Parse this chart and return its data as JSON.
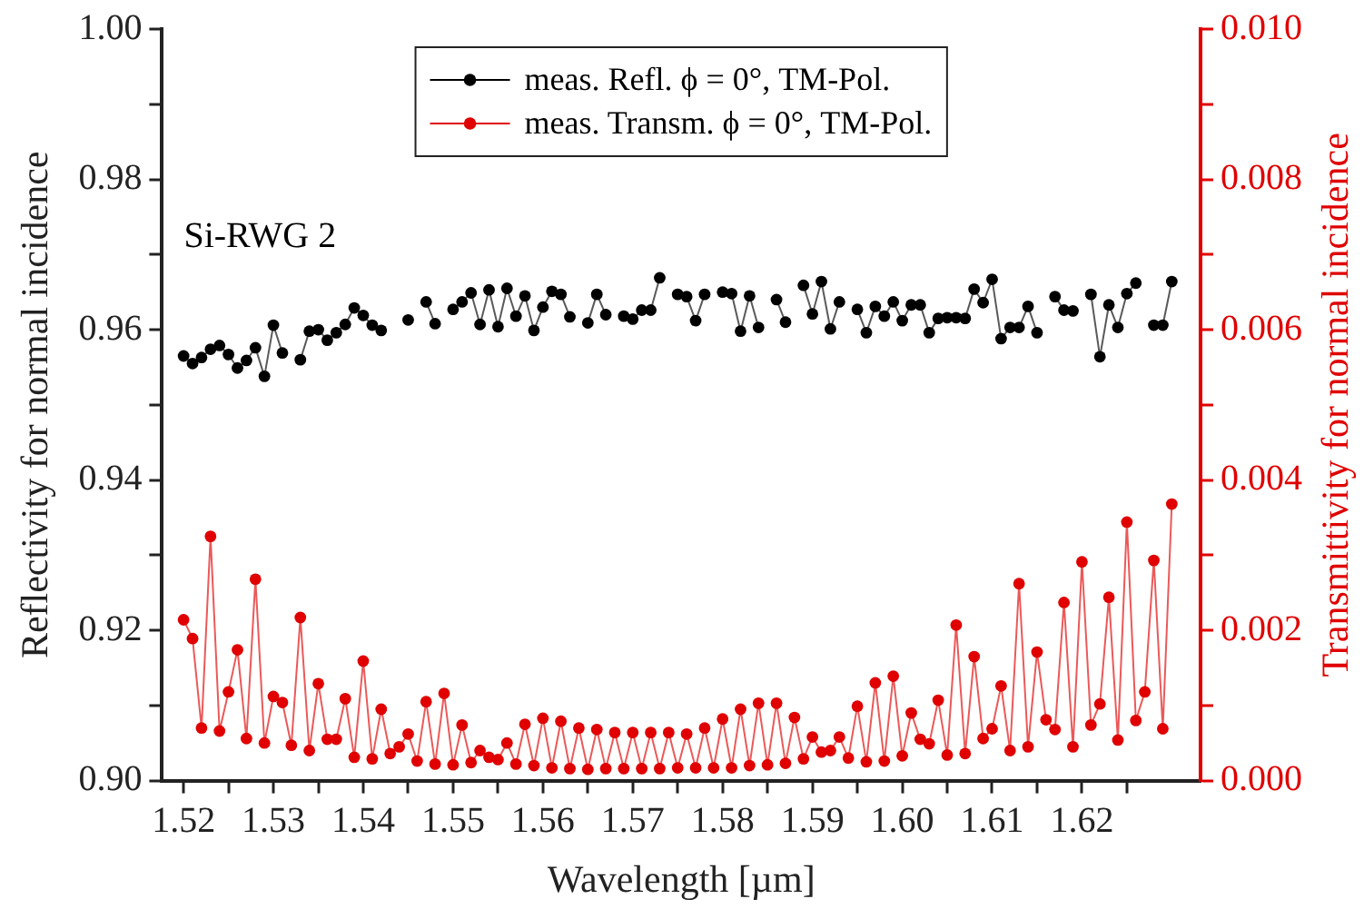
{
  "chart_data": {
    "type": "line",
    "xlabel": "Wavelength [µm]",
    "ylabel": "Reflectivity for normal incidence",
    "y2label": "Transmittivity for normal incidence",
    "annotations": [
      "Si-RWG 2"
    ],
    "x": [
      1.52,
      1.521,
      1.522,
      1.523,
      1.524,
      1.525,
      1.526,
      1.527,
      1.528,
      1.529,
      1.53,
      1.531,
      1.532,
      1.533,
      1.534,
      1.535,
      1.536,
      1.537,
      1.538,
      1.539,
      1.54,
      1.541,
      1.542,
      1.543,
      1.544,
      1.545,
      1.546,
      1.547,
      1.548,
      1.549,
      1.55,
      1.551,
      1.552,
      1.553,
      1.554,
      1.555,
      1.556,
      1.557,
      1.558,
      1.559,
      1.56,
      1.561,
      1.562,
      1.563,
      1.564,
      1.565,
      1.566,
      1.567,
      1.568,
      1.569,
      1.57,
      1.571,
      1.572,
      1.573,
      1.574,
      1.575,
      1.576,
      1.577,
      1.578,
      1.579,
      1.58,
      1.581,
      1.582,
      1.583,
      1.584,
      1.585,
      1.586,
      1.587,
      1.588,
      1.589,
      1.59,
      1.591,
      1.592,
      1.593,
      1.594,
      1.595,
      1.596,
      1.597,
      1.598,
      1.599,
      1.6,
      1.601,
      1.602,
      1.603,
      1.604,
      1.605,
      1.606,
      1.607,
      1.608,
      1.609,
      1.61,
      1.611,
      1.612,
      1.613,
      1.614,
      1.615,
      1.616,
      1.617,
      1.618,
      1.619,
      1.62,
      1.621,
      1.622,
      1.623,
      1.624,
      1.625,
      1.626,
      1.627,
      1.628,
      1.629,
      1.63
    ],
    "series": [
      {
        "name": "meas. Refl. ϕ = 0°, TM-Pol.",
        "color": "#000000",
        "values": [
          0.9565,
          0.9555,
          0.9563,
          0.9574,
          0.9579,
          0.9567,
          0.9549,
          0.9559,
          0.9576,
          0.9538,
          0.9606,
          0.9569,
          null,
          0.956,
          0.9598,
          0.96,
          0.9586,
          0.9596,
          0.9607,
          0.9629,
          0.9619,
          0.9606,
          0.9599,
          null,
          null,
          0.9613,
          null,
          0.9637,
          0.9608,
          null,
          0.9627,
          0.9637,
          0.9649,
          0.9607,
          0.9653,
          0.9604,
          0.9655,
          0.9618,
          0.9645,
          0.9599,
          0.963,
          0.9651,
          0.9647,
          0.9617,
          null,
          0.9609,
          0.9647,
          0.962,
          null,
          0.9618,
          0.9614,
          0.9626,
          0.9626,
          0.9669,
          null,
          0.9647,
          0.9644,
          0.9612,
          0.9647,
          null,
          0.965,
          0.9648,
          0.9598,
          0.9645,
          0.9603,
          null,
          0.964,
          0.961,
          null,
          0.9659,
          0.9621,
          0.9664,
          0.9601,
          0.9637,
          null,
          0.9627,
          0.9596,
          0.9631,
          0.9618,
          0.9637,
          0.9612,
          0.9633,
          0.9633,
          0.9596,
          0.9615,
          0.9616,
          0.9616,
          0.9615,
          0.9654,
          0.9636,
          0.9667,
          0.9588,
          0.9603,
          0.9603,
          0.9631,
          0.9596,
          null,
          0.9644,
          0.9626,
          0.9625,
          null,
          0.9647,
          0.9564,
          0.9633,
          0.9603,
          0.9648,
          0.9662,
          null,
          0.9606,
          0.9606,
          0.9664
        ]
      },
      {
        "name": "meas. Transm. ϕ = 0°, TM-Pol.",
        "color": "#e00000",
        "axis": "y2",
        "values": [
          0.00214,
          0.00189,
          0.0007,
          0.00325,
          0.00066,
          0.00118,
          0.00174,
          0.00056,
          0.00268,
          0.0005,
          0.00112,
          0.00104,
          0.00047,
          0.00217,
          0.0004,
          0.00129,
          0.00055,
          0.00055,
          0.00109,
          0.00031,
          0.00159,
          0.00029,
          0.00095,
          0.00036,
          0.00045,
          0.00062,
          0.00026,
          0.00105,
          0.00022,
          0.00116,
          0.00021,
          0.00074,
          0.00024,
          0.0004,
          0.00031,
          0.00028,
          0.0005,
          0.00022,
          0.00075,
          0.0002,
          0.00083,
          0.00017,
          0.00079,
          0.00016,
          0.0007,
          0.00015,
          0.00068,
          0.00016,
          0.00064,
          0.00016,
          0.00064,
          0.00016,
          0.00064,
          0.00016,
          0.00064,
          0.00017,
          0.00062,
          0.00017,
          0.0007,
          0.00017,
          0.00082,
          0.00017,
          0.00095,
          0.0002,
          0.00103,
          0.00021,
          0.00103,
          0.00023,
          0.00084,
          0.00029,
          0.00058,
          0.00038,
          0.0004,
          0.00058,
          0.0003,
          0.00099,
          0.00025,
          0.0013,
          0.00026,
          0.00139,
          0.00033,
          0.0009,
          0.00055,
          0.00049,
          0.00107,
          0.00034,
          0.00207,
          0.00036,
          0.00165,
          0.00056,
          0.00069,
          0.00126,
          0.0004,
          0.00262,
          0.00045,
          0.00171,
          0.00081,
          0.00068,
          0.00237,
          0.00045,
          0.00291,
          0.00074,
          0.00102,
          0.00244,
          0.00054,
          0.00344,
          0.0008,
          0.00118,
          0.00293,
          0.00069,
          0.00368
        ]
      }
    ],
    "xlim": [
      1.5176,
      1.6332
    ],
    "xticks": [
      1.52,
      {
        "value": 1.525,
        "label": null
      },
      1.53,
      {
        "value": 1.535,
        "label": null
      },
      1.54,
      {
        "value": 1.545,
        "label": null
      },
      1.55,
      {
        "value": 1.555,
        "label": null
      },
      1.56,
      {
        "value": 1.565,
        "label": null
      },
      1.57,
      {
        "value": 1.575,
        "label": null
      },
      1.58,
      {
        "value": 1.585,
        "label": null
      },
      1.59,
      {
        "value": 1.595,
        "label": null
      },
      {
        "value": 1.6,
        "label": "1.60"
      },
      {
        "value": 1.605,
        "label": null
      },
      1.61,
      {
        "value": 1.615,
        "label": null
      },
      1.62,
      {
        "value": 1.625,
        "label": null
      }
    ],
    "ylim": [
      0.9,
      1.0
    ],
    "yticks": [
      {
        "value": 0.9,
        "label": "0.90"
      },
      {
        "value": 0.91,
        "label": null
      },
      0.92,
      {
        "value": 0.93,
        "label": null
      },
      0.94,
      {
        "value": 0.95,
        "label": null
      },
      0.96,
      {
        "value": 0.97,
        "label": null
      },
      0.98,
      {
        "value": 0.99,
        "label": null
      },
      {
        "value": 1.0,
        "label": "1.00"
      }
    ],
    "y2lim": [
      0,
      0.01
    ],
    "y2ticks": [
      {
        "value": 0,
        "label": "0.000"
      },
      {
        "value": 0.001,
        "label": null
      },
      0.002,
      {
        "value": 0.003,
        "label": null
      },
      0.004,
      {
        "value": 0.005,
        "label": null
      },
      0.006,
      {
        "value": 0.007,
        "label": null
      },
      0.008,
      {
        "value": 0.009,
        "label": null
      },
      {
        "value": 0.01,
        "label": "0.010"
      }
    ],
    "grid": false,
    "legend": "top",
    "marker": "circle",
    "line_style": "solid"
  }
}
